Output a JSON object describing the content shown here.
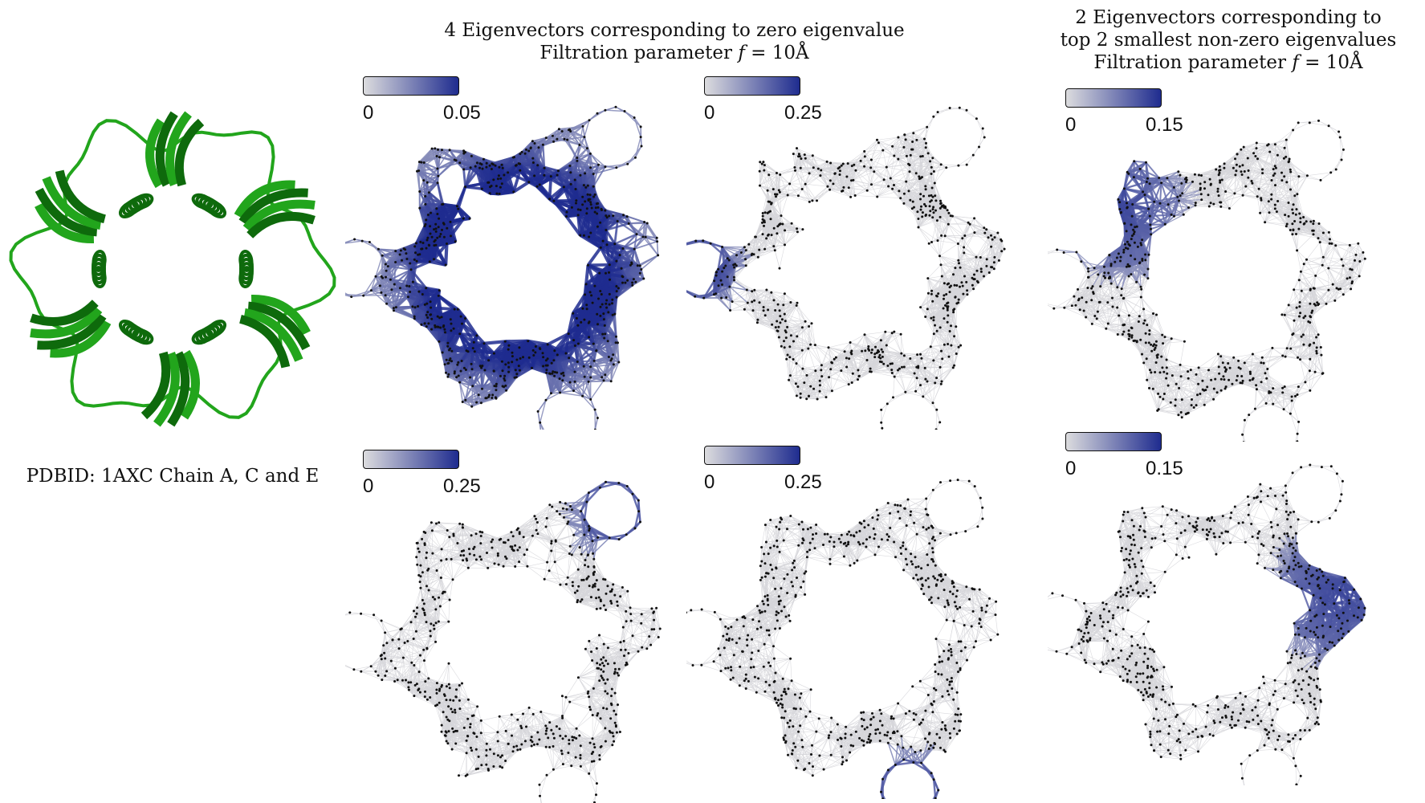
{
  "titles": {
    "middle": {
      "line1": "4 Eigenvectors corresponding to zero eigenvalue",
      "line2_prefix": "Filtration parameter",
      "line2_var": "f",
      "line2_rest": " =  10Å"
    },
    "right": {
      "line1": "2 Eigenvectors corresponding to",
      "line2": "top 2 smallest non-zero eigenvalues",
      "line3_prefix": "Filtration parameter",
      "line3_var": "f",
      "line3_rest": " =  10Å"
    }
  },
  "protein": {
    "caption": "PDBID: 1AXC Chain A, C and E",
    "color": "#22a51c",
    "dark_color": "#0e6a0c"
  },
  "colormap": {
    "low": "#dcdcde",
    "high": "#1f2c8f"
  },
  "panels": [
    {
      "id": "p1",
      "cbar_min": "0",
      "cbar_max": "0.05",
      "highlight": "ring"
    },
    {
      "id": "p2",
      "cbar_min": "0",
      "cbar_max": "0.25",
      "highlight": "loop-left"
    },
    {
      "id": "p3",
      "cbar_min": "0",
      "cbar_max": "0.15",
      "highlight": "lobe-upper-left"
    },
    {
      "id": "p4",
      "cbar_min": "0",
      "cbar_max": "0.25",
      "highlight": "loop-top-right"
    },
    {
      "id": "p5",
      "cbar_min": "0",
      "cbar_max": "0.25",
      "highlight": "loop-bottom"
    },
    {
      "id": "p6",
      "cbar_min": "0",
      "cbar_max": "0.15",
      "highlight": "lobe-upper-right"
    }
  ]
}
